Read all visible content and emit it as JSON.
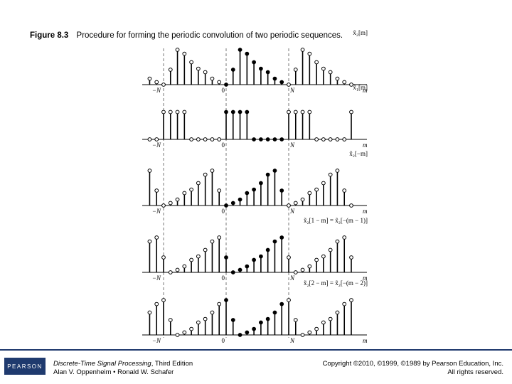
{
  "caption": {
    "figure": "Figure 8.3",
    "text": "Procedure for forming the periodic convolution of two periodic sequences."
  },
  "panels": [
    {
      "label": "x̃₂[m]",
      "ticks": [
        "−N",
        "0",
        "N"
      ],
      "axis": "m",
      "samples": [
        0,
        0,
        0,
        0.3,
        0.7,
        0.62,
        0.45,
        0.32,
        0.25,
        0.12,
        0.05,
        0.0,
        0.3,
        0.7,
        0.62,
        0.45,
        0.32,
        0.25,
        0.12,
        0.05,
        0.0,
        0.3,
        0.7,
        0.62,
        0.45,
        0.32,
        0.25,
        0.12,
        0.05,
        0.0
      ],
      "start": -11
    },
    {
      "label": "x̃₁[m]",
      "ticks": [
        "−N",
        "0",
        "N"
      ],
      "axis": "m",
      "samples": [
        0,
        0,
        0.55,
        0.55,
        0.55,
        0.55,
        0,
        0,
        0,
        0,
        0.55,
        0.55,
        0.55,
        0.55,
        0,
        0,
        0,
        0,
        0.55,
        0.55,
        0.55,
        0.55,
        0,
        0,
        0,
        0,
        0,
        0,
        0.55
      ],
      "start": -10
    },
    {
      "label": "x̃₂[−m]",
      "ticks": [
        "−N",
        "0",
        "N"
      ],
      "axis": "m"
    },
    {
      "label": "x̃₂[1 − m] = x̃₂[−(m − 1)]",
      "ticks": [
        "−N",
        "0",
        "N"
      ],
      "axis": "m"
    },
    {
      "label": "x̃₂[2 − m] = x̃₂[−(m − 2)]",
      "ticks": [
        "−N",
        "0",
        "N"
      ],
      "axis": "m"
    }
  ],
  "footer": {
    "logo": "PEARSON",
    "book_title": "Discrete-Time Signal Processing",
    "edition": ", Third Edition",
    "authors": "Alan V. Oppenheim • Ronald W. Schafer",
    "copyright": "Copyright ©2010, ©1999, ©1989 by Pearson Education, Inc.",
    "rights": "All rights reserved."
  },
  "colors": {
    "footer_bar": "#1f3a6e",
    "stem": "#000000"
  }
}
